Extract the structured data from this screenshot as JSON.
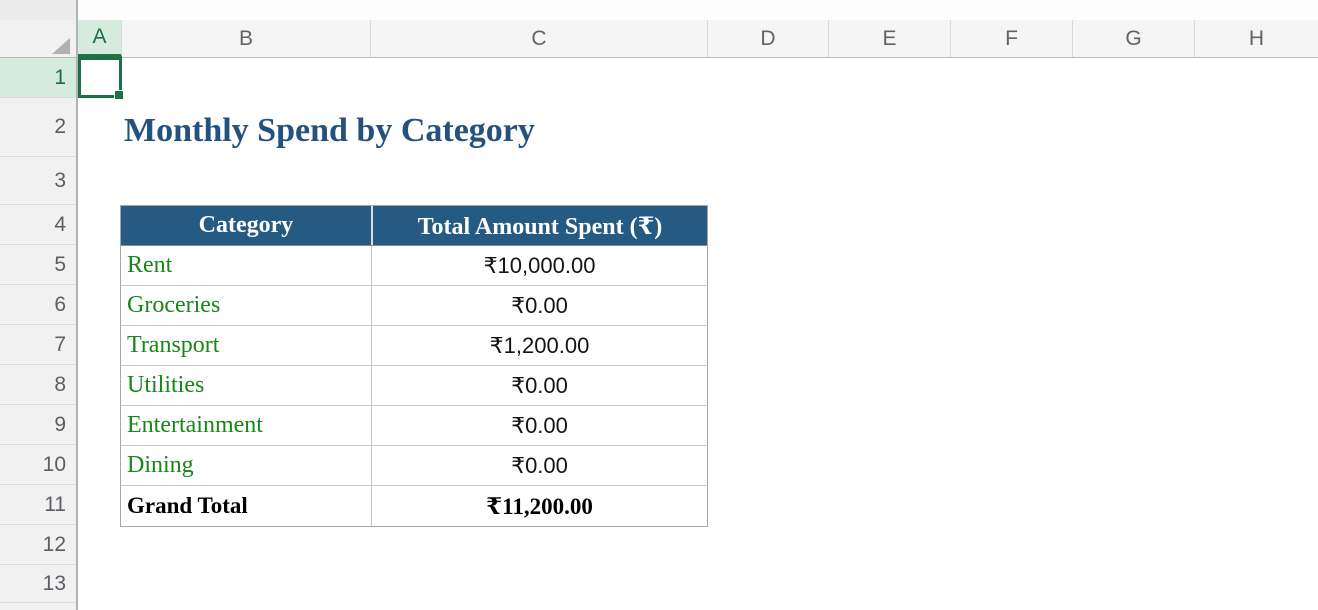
{
  "columns": [
    "A",
    "B",
    "C",
    "D",
    "E",
    "F",
    "G",
    "H"
  ],
  "rows": [
    "1",
    "2",
    "3",
    "4",
    "5",
    "6",
    "7",
    "8",
    "9",
    "10",
    "11",
    "12",
    "13"
  ],
  "selection": {
    "active_cell": "A1",
    "selected_column": "A",
    "selected_row": "1"
  },
  "sheet_title": "Monthly Spend by Category",
  "spend_table": {
    "headers": {
      "category": "Category",
      "amount": "Total Amount Spent (₹)"
    },
    "rows": [
      {
        "category": "Rent",
        "amount": "₹10,000.00"
      },
      {
        "category": "Groceries",
        "amount": "₹0.00"
      },
      {
        "category": "Transport",
        "amount": "₹1,200.00"
      },
      {
        "category": "Utilities",
        "amount": "₹0.00"
      },
      {
        "category": "Entertainment",
        "amount": "₹0.00"
      },
      {
        "category": "Dining",
        "amount": "₹0.00"
      }
    ],
    "total": {
      "category": "Grand Total",
      "amount": "₹11,200.00"
    }
  },
  "colors": {
    "table_header_fill": "#255a83",
    "title_text": "#24527e",
    "category_text": "#178717",
    "selection_green": "#1e7145",
    "selected_header_bg": "#d5ebdd"
  }
}
